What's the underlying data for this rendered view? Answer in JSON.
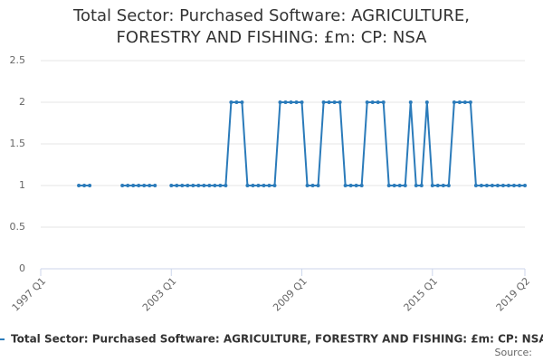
{
  "chart_data": {
    "type": "line",
    "title": "Total Sector: Purchased Software: AGRICULTURE, FORESTRY AND FISHING: £m: CP: NSA",
    "categories": [
      "1997 Q1",
      null,
      null,
      null,
      null,
      null,
      null,
      null,
      null,
      null,
      null,
      null,
      null,
      null,
      null,
      null,
      null,
      null,
      null,
      null,
      null,
      null,
      null,
      null,
      "2003 Q1",
      null,
      null,
      null,
      null,
      null,
      null,
      null,
      null,
      null,
      null,
      null,
      null,
      null,
      null,
      null,
      null,
      null,
      null,
      null,
      null,
      null,
      null,
      null,
      "2009 Q1",
      null,
      null,
      null,
      null,
      null,
      null,
      null,
      null,
      null,
      null,
      null,
      null,
      null,
      null,
      null,
      null,
      null,
      null,
      null,
      null,
      null,
      null,
      null,
      "2015 Q1",
      null,
      null,
      null,
      null,
      null,
      null,
      null,
      null,
      null,
      null,
      null,
      null,
      null,
      null,
      null,
      null,
      "2019 Q2"
    ],
    "series": [
      {
        "name": "Total Sector: Purchased Software: AGRICULTURE, FORESTRY AND FISHING: £m: CP: NSA",
        "color": "#2b7bba",
        "values": [
          null,
          null,
          null,
          null,
          null,
          null,
          null,
          1,
          1,
          1,
          null,
          null,
          null,
          null,
          null,
          1,
          1,
          1,
          1,
          1,
          1,
          1,
          null,
          null,
          1,
          1,
          1,
          1,
          1,
          1,
          1,
          1,
          1,
          1,
          1,
          2,
          2,
          2,
          1,
          1,
          1,
          1,
          1,
          1,
          2,
          2,
          2,
          2,
          2,
          1,
          1,
          1,
          2,
          2,
          2,
          2,
          1,
          1,
          1,
          1,
          2,
          2,
          2,
          2,
          1,
          1,
          1,
          1,
          2,
          1,
          1,
          2,
          1,
          1,
          1,
          1,
          2,
          2,
          2,
          2,
          1,
          1,
          1,
          1,
          1,
          1,
          1,
          1,
          1,
          1
        ]
      }
    ],
    "ylim": [
      0,
      2.5
    ],
    "yticks": [
      0,
      0.5,
      1,
      1.5,
      2,
      2.5
    ],
    "grid": true,
    "source_label": "Source:"
  }
}
